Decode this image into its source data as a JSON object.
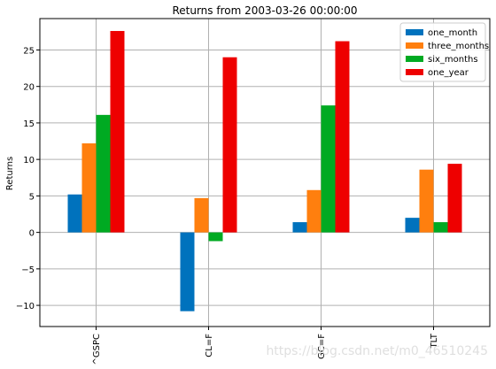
{
  "chart_data": {
    "type": "bar",
    "title": "Returns from 2003-03-26 00:00:00",
    "xlabel": "",
    "ylabel": "Returns",
    "categories": [
      "^GSPC",
      "CL=F",
      "GC=F",
      "TLT"
    ],
    "ylim": [
      -12.9,
      29.3
    ],
    "yticks": [
      -10,
      -5,
      0,
      5,
      10,
      15,
      20,
      25
    ],
    "grid": true,
    "legend_position": "top-right",
    "series": [
      {
        "name": "one_month",
        "color": "#0072bd",
        "values": [
          5.2,
          -10.8,
          1.4,
          2.0
        ]
      },
      {
        "name": "three_months",
        "color": "#ff7f0e",
        "values": [
          12.2,
          4.7,
          5.8,
          8.6
        ]
      },
      {
        "name": "six_months",
        "color": "#00aa22",
        "values": [
          16.1,
          -1.2,
          17.4,
          1.4
        ]
      },
      {
        "name": "one_year",
        "color": "#ee0000",
        "values": [
          27.6,
          24.0,
          26.2,
          9.4
        ]
      }
    ]
  },
  "watermark": "https://blog.csdn.net/m0_46510245"
}
